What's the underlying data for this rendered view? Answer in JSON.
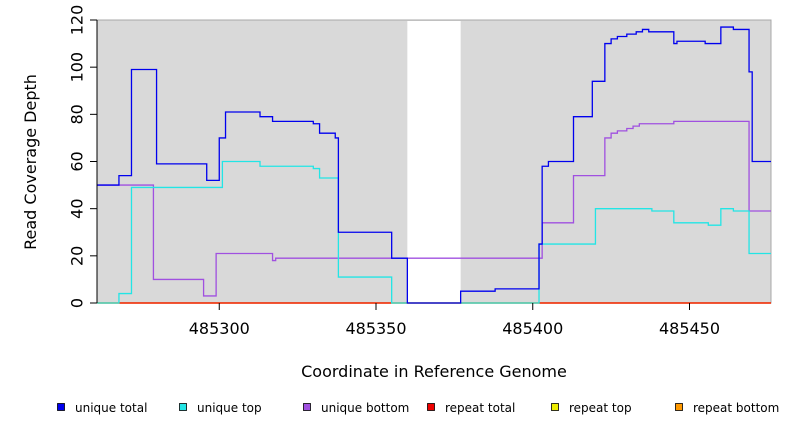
{
  "chart_data": {
    "type": "line",
    "title": "",
    "xlabel": "Coordinate in Reference Genome",
    "ylabel": "Read Coverage Depth",
    "xlim": [
      485261,
      485476
    ],
    "ylim": [
      0,
      120
    ],
    "xticks": [
      485300,
      485350,
      485400,
      485450
    ],
    "yticks": [
      0,
      20,
      40,
      60,
      80,
      100,
      120
    ],
    "background": "#d9d9d9",
    "gaps": [
      [
        485360,
        485377
      ]
    ],
    "legend_position": "bottom",
    "series": [
      {
        "name": "unique total",
        "color": "#0000ee",
        "x": [
          485261,
          485268,
          485272,
          485280,
          485296,
          485300,
          485302,
          485313,
          485317,
          485330,
          485332,
          485337,
          485338,
          485355,
          485360,
          485361,
          485377,
          485388,
          485402,
          485403,
          485405,
          485413,
          485419,
          485423,
          485425,
          485427,
          485430,
          485433,
          485435,
          485437,
          485445,
          485446,
          485455,
          485460,
          485464,
          485469,
          485470,
          485476
        ],
        "y": [
          50,
          54,
          99,
          59,
          52,
          70,
          81,
          79,
          77,
          76,
          72,
          70,
          30,
          19,
          0,
          0,
          5,
          6,
          25,
          58,
          60,
          79,
          94,
          110,
          112,
          113,
          114,
          115,
          116,
          115,
          110,
          111,
          110,
          117,
          116,
          98,
          60,
          60
        ]
      },
      {
        "name": "unique top",
        "color": "#22e5e5",
        "x": [
          485261,
          485268,
          485272,
          485301,
          485313,
          485330,
          485332,
          485338,
          485355,
          485361,
          485402,
          485420,
          485438,
          485445,
          485456,
          485460,
          485464,
          485469,
          485476
        ],
        "y": [
          0,
          4,
          49,
          60,
          58,
          57,
          53,
          11,
          0,
          0,
          25,
          40,
          39,
          34,
          33,
          40,
          39,
          21,
          21
        ],
        "note": ""
      },
      {
        "name": "unique bottom",
        "color": "#a050e0",
        "x": [
          485261,
          485272,
          485279,
          485295,
          485299,
          485317,
          485318,
          485402,
          485403,
          485413,
          485423,
          485425,
          485427,
          485430,
          485432,
          485434,
          485436,
          485445,
          485469,
          485476
        ],
        "y": [
          50,
          50,
          10,
          3,
          21,
          18,
          19,
          19,
          34,
          54,
          70,
          72,
          73,
          74,
          75,
          76,
          76,
          77,
          39,
          39
        ]
      },
      {
        "name": "repeat total",
        "color": "#ee0000",
        "x": [
          485261,
          485476
        ],
        "y": [
          0,
          0
        ]
      },
      {
        "name": "repeat top",
        "color": "#eeee00",
        "x": [
          485261,
          485476
        ],
        "y": [
          0,
          0
        ]
      },
      {
        "name": "repeat bottom",
        "color": "#ff9900",
        "x": [
          485261,
          485476
        ],
        "y": [
          0,
          0
        ]
      }
    ]
  }
}
